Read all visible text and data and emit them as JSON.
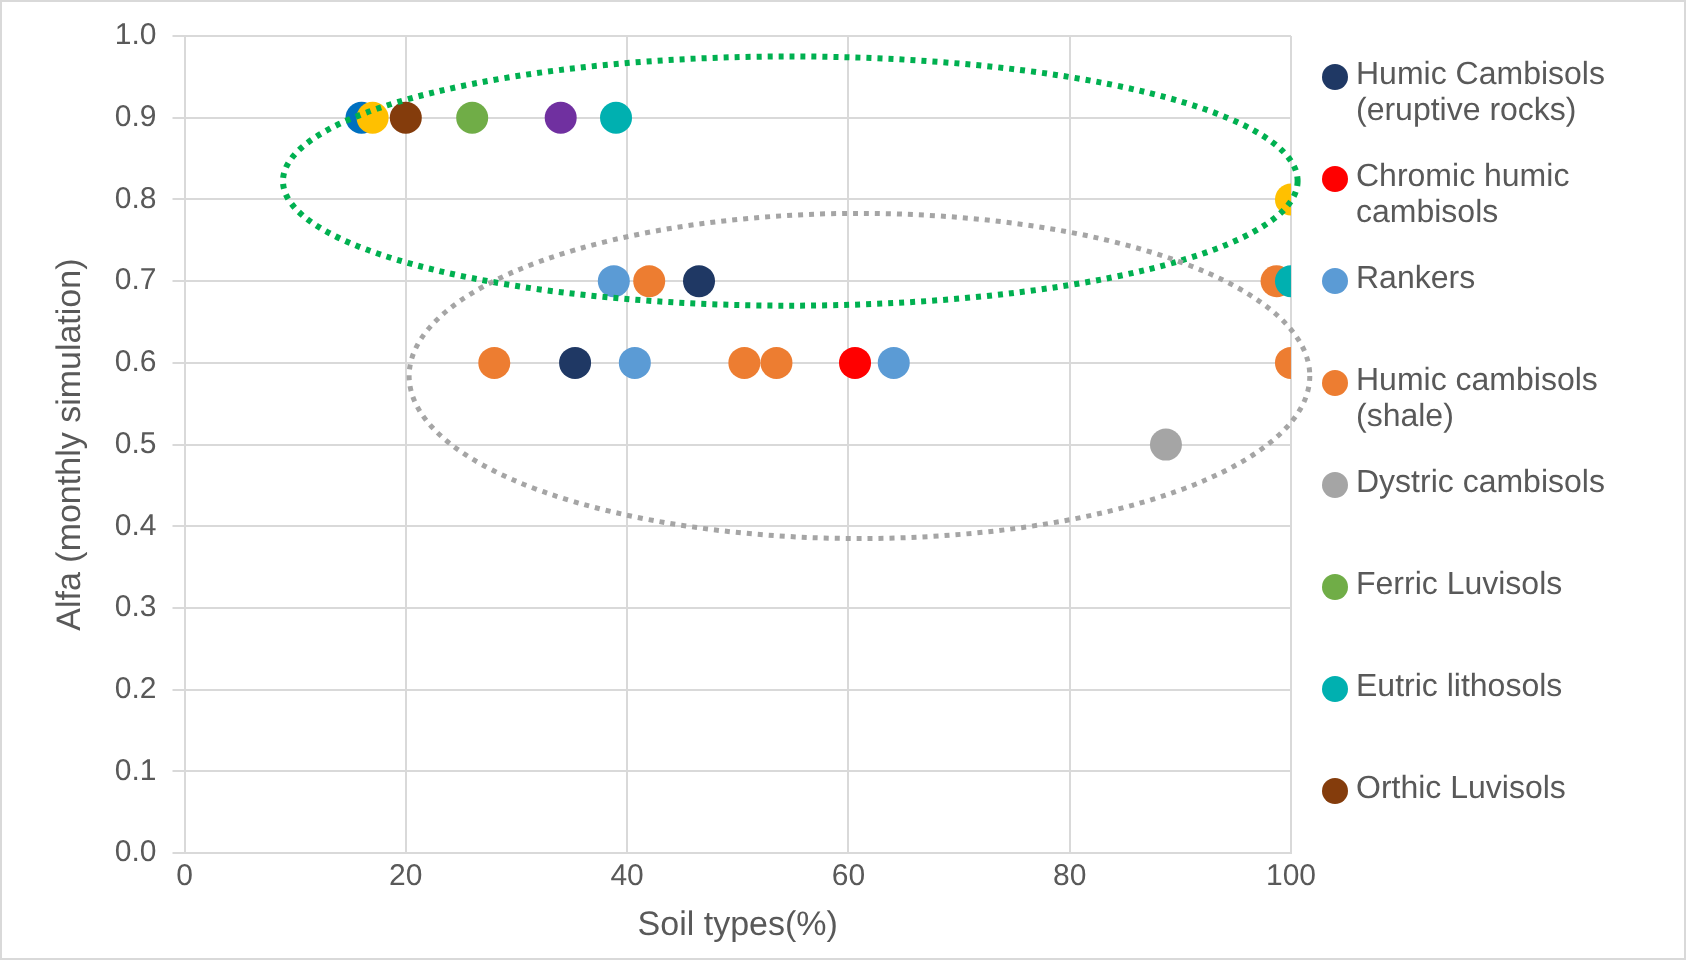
{
  "chart_data": {
    "type": "scatter",
    "xlabel": "Soil types(%)",
    "ylabel": "Alfa (monthly simulation)",
    "xlim": [
      0,
      100
    ],
    "xticks": [
      0,
      20,
      40,
      60,
      80,
      100
    ],
    "ylim": [
      0,
      1
    ],
    "yticks": [
      {
        "value": 0,
        "label": "0.0"
      },
      0.1,
      0.2,
      0.3,
      0.4,
      0.5,
      0.6,
      0.7,
      0.8,
      0.9,
      {
        "value": 1,
        "label": "1.0"
      }
    ],
    "grid": true,
    "legend": "right",
    "marker": "circle",
    "series": [
      {
        "name": "Humic Cambisols (eruptive rocks)",
        "color": "#1f3864",
        "x": [
          46.5,
          35.3
        ],
        "values": [
          0.7,
          0.6
        ]
      },
      {
        "name": "Chromic humic cambisols",
        "color": "#ff0000",
        "x": [
          60.6
        ],
        "values": [
          0.6
        ]
      },
      {
        "name": "Rankers",
        "color": "#5b9bd5",
        "x": [
          38.8,
          40.7,
          64.1
        ],
        "values": [
          0.7,
          0.6,
          0.6
        ]
      },
      {
        "name": "Humic cambisols (shale)",
        "color": "#ed7d31",
        "x": [
          42,
          98.7,
          28,
          50.6,
          53.5,
          100
        ],
        "values": [
          0.7,
          0.7,
          0.6,
          0.6,
          0.6,
          0.6
        ]
      },
      {
        "name": "Dystric cambisols",
        "color": "#a5a5a5",
        "x": [
          88.7
        ],
        "values": [
          0.5
        ]
      },
      {
        "name": "Ferric Luvisols",
        "color": "#70ad47",
        "x": [
          26
        ],
        "values": [
          0.9
        ]
      },
      {
        "name": "Eutric lithosols",
        "color": "#00b0b0",
        "x": [
          39,
          100
        ],
        "values": [
          0.9,
          0.7
        ]
      },
      {
        "name": "Orthic Luvisols",
        "color": "#843c0c",
        "x": [
          20
        ],
        "values": [
          0.9
        ]
      },
      {
        "color": "#0070c0",
        "x": [
          16
        ],
        "values": [
          0.9
        ]
      },
      {
        "color": "#ffc000",
        "x": [
          17,
          100
        ],
        "values": [
          0.9,
          0.8
        ]
      },
      {
        "color": "#7030a0",
        "x": [
          34
        ],
        "values": [
          0.9
        ]
      }
    ]
  }
}
